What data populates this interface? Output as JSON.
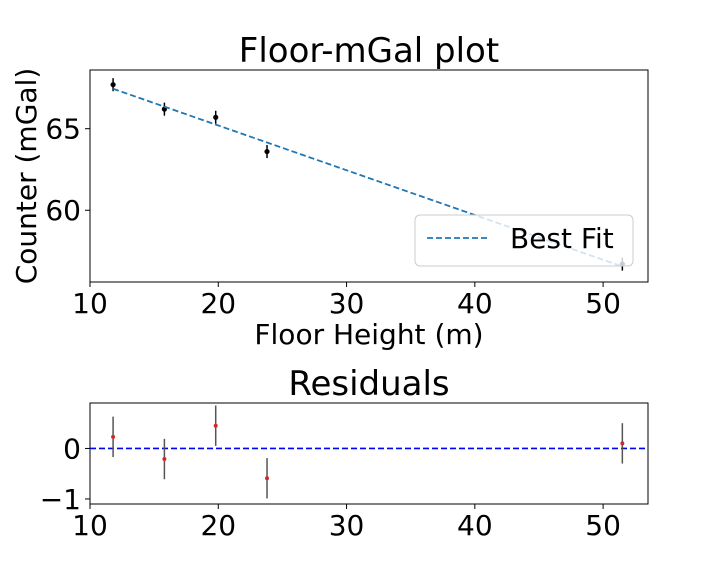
{
  "chart_data": [
    {
      "type": "scatter",
      "title": "Floor-mGal plot",
      "xlabel": "Floor Height (m)",
      "ylabel": "Counter (mGal)",
      "xlim": [
        10.0,
        53.5
      ],
      "ylim": [
        55.6,
        68.6
      ],
      "xticks": [
        "10",
        "20",
        "30",
        "40",
        "50"
      ],
      "yticks": [
        "60",
        "65"
      ],
      "grid": false,
      "legend": {
        "placement": "lower-right",
        "entries": [
          "Best Fit"
        ]
      },
      "series": [
        {
          "kind": "errorbar-points",
          "color": "#000000",
          "x": [
            11.8,
            15.8,
            19.8,
            23.8,
            51.5
          ],
          "y": [
            67.7,
            66.2,
            65.7,
            63.6,
            56.7
          ],
          "yerr": [
            0.4,
            0.4,
            0.4,
            0.4,
            0.4
          ]
        },
        {
          "name": "Best Fit",
          "kind": "fit-line",
          "color": "#1f77b4",
          "x": [
            11.8,
            51.5
          ],
          "y": [
            67.45,
            56.55
          ]
        }
      ]
    },
    {
      "type": "scatter",
      "title": "Residuals",
      "xlabel": "",
      "ylabel": "",
      "xlim": [
        10.0,
        53.5
      ],
      "ylim": [
        -1.1,
        0.9
      ],
      "xticks": [
        "10",
        "20",
        "30",
        "40",
        "50"
      ],
      "yticks": [
        "−1",
        "0"
      ],
      "grid": false,
      "reference_line": {
        "y": 0,
        "color": "#0000ff"
      },
      "series": [
        {
          "kind": "errorbar-points",
          "point_color": "#d62728",
          "bar_color": "#555555",
          "x": [
            11.8,
            15.8,
            19.8,
            23.8,
            51.5
          ],
          "y": [
            0.23,
            -0.21,
            0.45,
            -0.59,
            0.1
          ],
          "yerr": [
            0.4,
            0.4,
            0.4,
            0.4,
            0.4
          ]
        }
      ]
    }
  ]
}
